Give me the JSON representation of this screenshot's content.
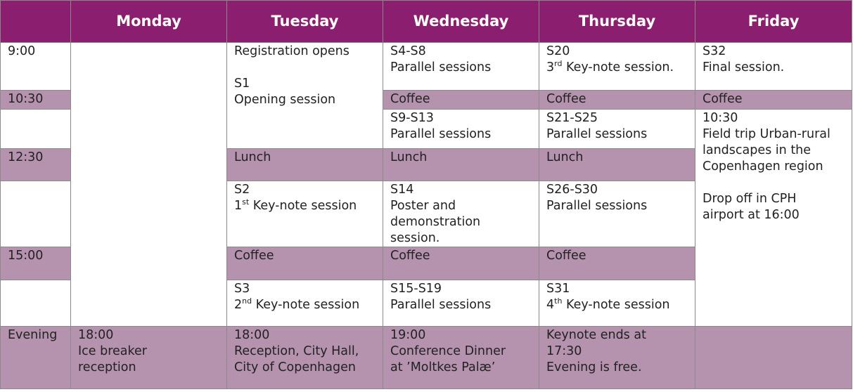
{
  "header": {
    "corner": "",
    "days": [
      "Monday",
      "Tuesday",
      "Wednesday",
      "Thursday",
      "Friday"
    ]
  },
  "colors": {
    "header": "#8b1e6e",
    "shaded": "#b592ad",
    "white": "#ffffff"
  },
  "rows": {
    "r900": {
      "time": "9:00",
      "tuesday": "Registration opens",
      "wednesday": [
        "S4-S8",
        "Parallel sessions"
      ],
      "thursday": {
        "title": "S20",
        "ord_num": "3",
        "ord_suf": "rd",
        "rest": " Key-note session."
      },
      "friday": [
        "S32",
        "Final session."
      ]
    },
    "r1030": {
      "time": "10:30",
      "tuesday": [
        "S1",
        "Opening session"
      ],
      "wednesday": "Coffee",
      "thursday": "Coffee",
      "friday": "Coffee"
    },
    "r1100": {
      "wednesday": [
        "S9-S13",
        "Parallel sessions"
      ],
      "thursday": [
        "S21-S25",
        "Parallel sessions"
      ],
      "friday": [
        "10:30",
        "Field trip Urban-rural",
        "landscapes in the",
        "Copenhagen region",
        "Drop off in CPH",
        "airport at 16:00"
      ]
    },
    "r1230": {
      "time": "12:30",
      "tuesday": "Lunch",
      "wednesday": "Lunch",
      "thursday": "Lunch"
    },
    "r1330": {
      "tuesday": {
        "title": "S2",
        "ord_num": "1",
        "ord_suf": "st",
        "rest": " Key-note session"
      },
      "wednesday": [
        "S14",
        "Poster and",
        "demonstration",
        "session."
      ],
      "thursday": [
        "S26-S30",
        "Parallel sessions"
      ]
    },
    "r1500": {
      "time": "15:00",
      "tuesday": "Coffee",
      "wednesday": "Coffee",
      "thursday": "Coffee"
    },
    "r1530": {
      "tuesday": {
        "title": "S3",
        "ord_num": "2",
        "ord_suf": "nd",
        "rest": " Key-note session"
      },
      "wednesday": [
        "S15-S19",
        "Parallel sessions"
      ],
      "thursday": {
        "title": "S31",
        "ord_num": "4",
        "ord_suf": "th",
        "rest": " Key-note session"
      }
    },
    "evening": {
      "time": "Evening",
      "monday": [
        "18:00",
        "Ice breaker",
        "reception"
      ],
      "tuesday": [
        "18:00",
        "Reception, City Hall,",
        "City of Copenhagen"
      ],
      "wednesday": [
        "19:00",
        "Conference Dinner",
        "at ’Moltkes Palæ’"
      ],
      "thursday": [
        "Keynote ends at",
        "17:30",
        "Evening is free."
      ],
      "friday": ""
    }
  }
}
